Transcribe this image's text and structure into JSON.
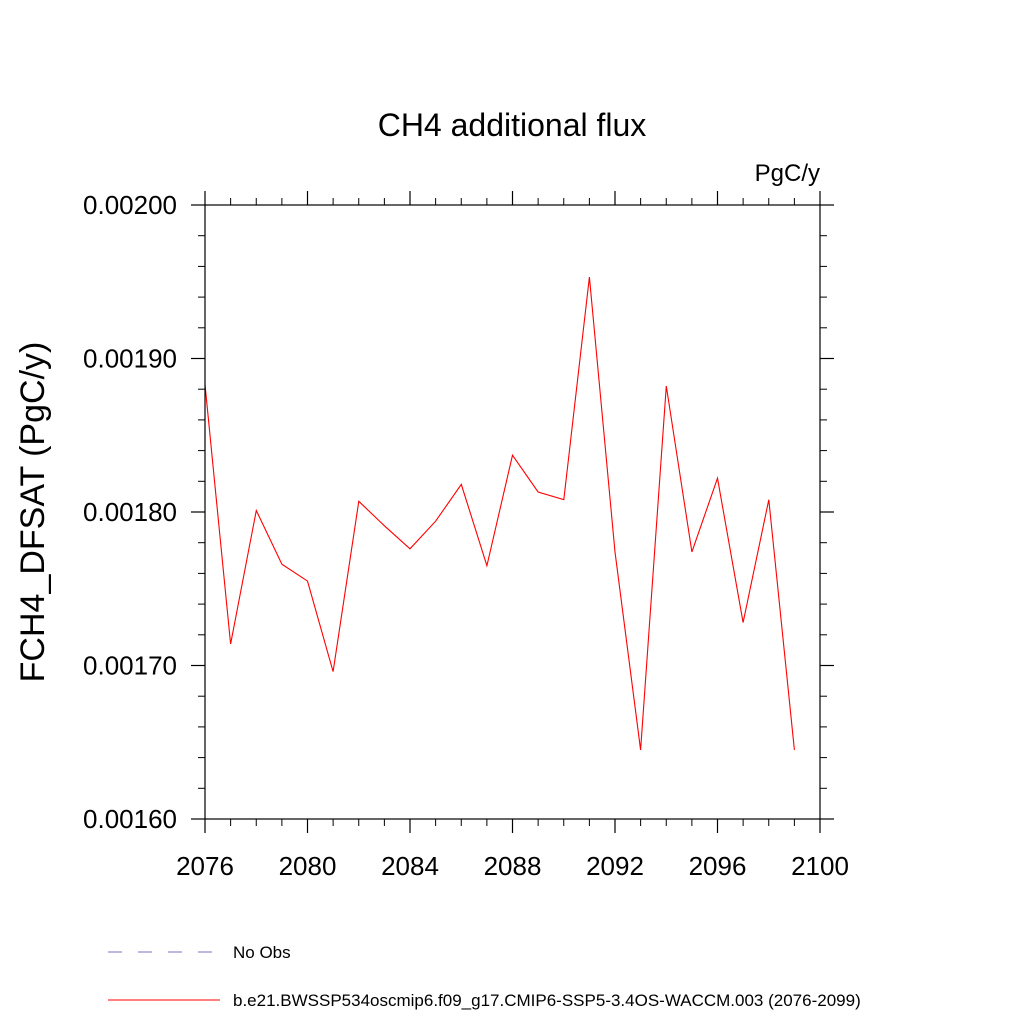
{
  "chart_data": {
    "type": "line",
    "title": "CH4 additional flux",
    "units_label": "PgC/y",
    "xlabel": "",
    "ylabel": "FCH4_DFSAT  (PgC/y)",
    "xlim": [
      2076,
      2100
    ],
    "ylim": [
      0.0016,
      0.002
    ],
    "x_ticks": [
      2076,
      2080,
      2084,
      2088,
      2092,
      2096,
      2100
    ],
    "x_tick_labels": [
      "2076",
      "2080",
      "2084",
      "2088",
      "2092",
      "2096",
      "2100"
    ],
    "y_ticks": [
      0.0016,
      0.0017,
      0.0018,
      0.0019,
      0.002
    ],
    "y_tick_labels": [
      "0.00160",
      "0.00170",
      "0.00180",
      "0.00190",
      "0.00200"
    ],
    "grid": false,
    "legend_position": "bottom",
    "series": [
      {
        "name": "b.e21.BWSSP534oscmip6.f09_g17.CMIP6-SSP5-3.4OS-WACCM.003 (2076-2099)",
        "color": "#ff0000",
        "x": [
          2076,
          2077,
          2078,
          2079,
          2080,
          2081,
          2082,
          2083,
          2084,
          2085,
          2086,
          2087,
          2088,
          2089,
          2090,
          2091,
          2092,
          2093,
          2094,
          2095,
          2096,
          2097,
          2098,
          2099
        ],
        "y": [
          0.001883,
          0.001714,
          0.001801,
          0.001766,
          0.001755,
          0.001696,
          0.001807,
          0.001791,
          0.001776,
          0.001794,
          0.001818,
          0.001765,
          0.001837,
          0.001813,
          0.001808,
          0.001953,
          0.001774,
          0.001645,
          0.001882,
          0.001774,
          0.001822,
          0.001728,
          0.001808,
          0.001645
        ]
      }
    ],
    "legend": [
      {
        "label": "No Obs",
        "color": "#7f6fbf",
        "dashed": true
      },
      {
        "label": "b.e21.BWSSP534oscmip6.f09_g17.CMIP6-SSP5-3.4OS-WACCM.003 (2076-2099)",
        "color": "#ff0000",
        "dashed": false
      }
    ]
  }
}
